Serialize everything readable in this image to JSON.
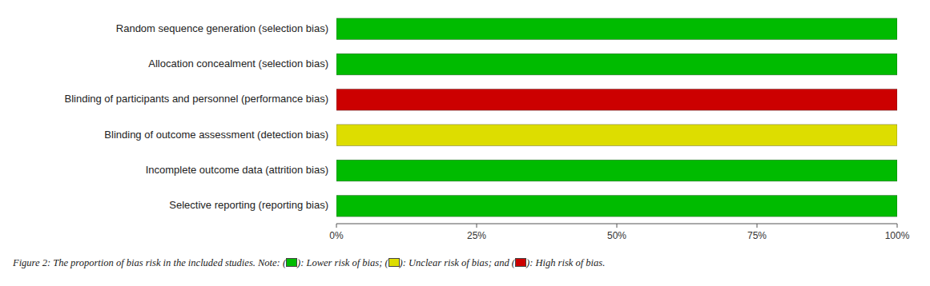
{
  "chart_data": {
    "type": "bar",
    "orientation": "horizontal",
    "categories": [
      "Random sequence generation (selection bias)",
      "Allocation concealment (selection bias)",
      "Blinding of participants and personnel (performance bias)",
      "Blinding of outcome assessment (detection bias)",
      "Incomplete outcome data (attrition bias)",
      "Selective reporting (reporting bias)"
    ],
    "values": [
      100,
      100,
      100,
      100,
      100,
      100
    ],
    "colors": [
      "#00BB00",
      "#00BB00",
      "#CC0000",
      "#DDDD00",
      "#00BB00",
      "#00BB00"
    ],
    "xlim": [
      0,
      100
    ],
    "xticks": [
      {
        "value": 0,
        "label": "0%"
      },
      {
        "value": 25,
        "label": "25%"
      },
      {
        "value": 50,
        "label": "50%"
      },
      {
        "value": 75,
        "label": "75%"
      },
      {
        "value": 100,
        "label": "100%"
      }
    ],
    "grid": false,
    "annotations": [
      {
        "text": "Figure 2: The proportion of bias risk in the included studies. Note: (",
        "color": "#00BB00"
      },
      {
        "text": "): Lower risk of bias; (",
        "color": "#DDDD00"
      },
      {
        "text": "): Unclear risk of bias; and (",
        "color": "#CC0000"
      },
      {
        "text": "): High risk of bias."
      }
    ]
  }
}
